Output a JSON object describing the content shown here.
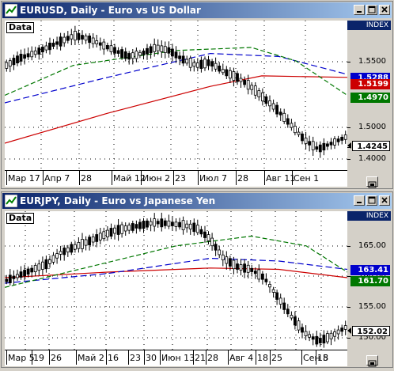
{
  "windows": [
    {
      "title": "EURUSD, Daily - Euro vs US Dollar",
      "data_label": "Data",
      "index_label": "INDEX",
      "x_labels": [
        "Мар 17",
        "Апр 7",
        "28",
        "Май 12",
        "Июн 2",
        "23",
        "Июл 7",
        "28",
        "Авг 11",
        "Сен 1"
      ],
      "y_labels": [
        "1.5500",
        "1.5000",
        "1.4500",
        "1.4000"
      ],
      "badges": [
        {
          "text": "1.5288",
          "color": "#0000cc"
        },
        {
          "text": "1.5199",
          "color": "#cc0000"
        },
        {
          "text": "1.4970",
          "color": "#007700"
        },
        {
          "text": "1.4245",
          "color": "price"
        }
      ],
      "colors": {
        "ma_blue": "#0000cc",
        "ma_red": "#cc0000",
        "ma_green": "#007700",
        "candle": "#006400"
      }
    },
    {
      "title": "EURJPY, Daily - Euro vs Japanese Yen",
      "data_label": "Data",
      "index_label": "INDEX",
      "x_labels": [
        "Мар 5",
        "19",
        "26",
        "Май 2",
        "16",
        "23",
        "30",
        "Июн 13",
        "21",
        "28",
        "Авг 4",
        "18",
        "25",
        "Сен 8",
        "15"
      ],
      "y_labels": [
        "165.00",
        "160.00",
        "155.00",
        "150.00"
      ],
      "badges": [
        {
          "text": "163.41",
          "color": "#0000cc"
        },
        {
          "text": "161.70",
          "color": "#007700"
        },
        {
          "text": "152.02",
          "color": "price"
        }
      ],
      "colors": {
        "ma_blue": "#0000cc",
        "ma_red": "#cc0000",
        "ma_green": "#007700",
        "candle": "#006400"
      }
    }
  ]
}
